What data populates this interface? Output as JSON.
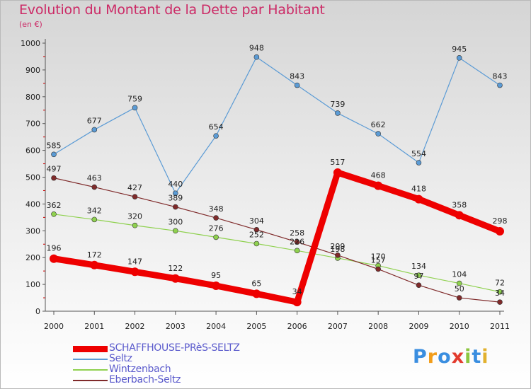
{
  "title": "Evolution du Montant de la Dette par Habitant",
  "subtitle": "(en €)",
  "logo": {
    "text": "Proxiti",
    "letters": [
      "P",
      "r",
      "o",
      "x",
      "i",
      "t",
      "i"
    ],
    "colors": [
      "#3a8ee0",
      "#f29d1a",
      "#3a8ee0",
      "#e23b2e",
      "#8cc63f",
      "#3a8ee0",
      "#e2b12e"
    ]
  },
  "chart_data": {
    "type": "line",
    "x": [
      2000,
      2001,
      2002,
      2003,
      2004,
      2005,
      2006,
      2007,
      2008,
      2009,
      2010,
      2011
    ],
    "ylim": [
      0,
      1000
    ],
    "yticks": [
      0,
      100,
      200,
      300,
      400,
      500,
      600,
      700,
      800,
      900,
      1000
    ],
    "grid": false,
    "legend_position": "bottom-left",
    "series": [
      {
        "name": "SCHAFFHOUSE-PRèS-SELTZ",
        "color": "#ee0000",
        "width": "thick",
        "values": [
          196,
          172,
          147,
          122,
          95,
          65,
          34,
          517,
          468,
          418,
          358,
          298
        ]
      },
      {
        "name": "Seltz",
        "color": "#5b9bd5",
        "width": "thin",
        "values": [
          585,
          677,
          759,
          440,
          654,
          948,
          843,
          739,
          662,
          554,
          945,
          843
        ]
      },
      {
        "name": "Wintzenbach",
        "color": "#8fd14f",
        "width": "thin",
        "values": [
          362,
          342,
          320,
          300,
          276,
          252,
          226,
          198,
          170,
          134,
          104,
          72
        ]
      },
      {
        "name": "Eberbach-Seltz",
        "color": "#7f2a2a",
        "width": "thin",
        "values": [
          497,
          463,
          427,
          389,
          348,
          304,
          258,
          209,
          157,
          97,
          50,
          34
        ]
      }
    ]
  }
}
